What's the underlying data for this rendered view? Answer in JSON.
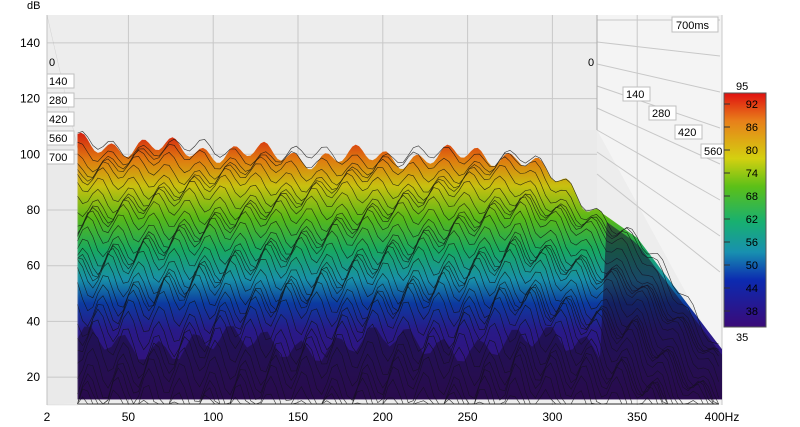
{
  "chart_data": {
    "type": "waterfall",
    "yunit": "dB",
    "xunit": "Hz",
    "y_ticks": [
      "140",
      "120",
      "100",
      "80",
      "60",
      "40",
      "20"
    ],
    "ylim": [
      10,
      150
    ],
    "x_ticks": [
      "2",
      "50",
      "100",
      "150",
      "200",
      "250",
      "300",
      "350",
      "400Hz"
    ],
    "x_tick_values": [
      2,
      50,
      100,
      150,
      200,
      250,
      300,
      350,
      400
    ],
    "xlim": [
      2,
      400
    ],
    "time_axis_label": "700ms",
    "time_ticks": [
      "0",
      "140",
      "280",
      "420",
      "560",
      "700"
    ],
    "colorbar": {
      "min": "35",
      "max": "95",
      "ticks": [
        "92",
        "86",
        "80",
        "74",
        "68",
        "62",
        "56",
        "50",
        "44",
        "38"
      ]
    },
    "grid": true,
    "surface_summary": {
      "front_slice_peaks_db": [
        {
          "x": 25,
          "y": 104
        },
        {
          "x": 70,
          "y": 102
        },
        {
          "x": 110,
          "y": 101
        },
        {
          "x": 150,
          "y": 99
        },
        {
          "x": 225,
          "y": 99
        },
        {
          "x": 280,
          "y": 100
        },
        {
          "x": 350,
          "y": 70
        },
        {
          "x": 400,
          "y": 30
        }
      ]
    }
  }
}
